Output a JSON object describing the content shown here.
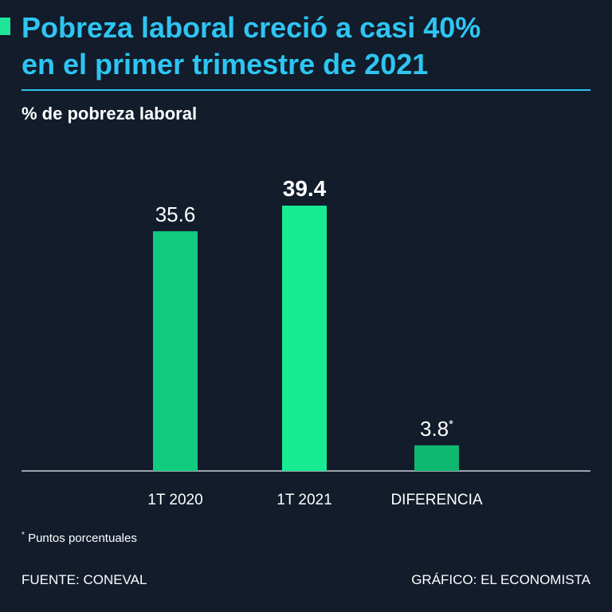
{
  "header": {
    "title_line1": "Pobreza laboral creció a casi 40%",
    "title_line2": "en el primer trimestre de 2021",
    "subtitle": "% de pobreza laboral"
  },
  "colors": {
    "background": "#121c2b",
    "title": "#2ec5f2",
    "accent": "#1fe59a",
    "bars": [
      "#11cc7e",
      "#17ec93",
      "#0fb870"
    ]
  },
  "chart_data": {
    "type": "bar",
    "categories": [
      "1T 2020",
      "1T 2021",
      "DIFERENCIA"
    ],
    "values": [
      35.6,
      39.4,
      3.8
    ],
    "value_labels": [
      "35.6",
      "39.4",
      "3.8*"
    ],
    "highlight_index": 1,
    "title": "",
    "xlabel": "",
    "ylabel": "% de pobreza laboral",
    "ylim": [
      0,
      40
    ],
    "grid": false
  },
  "footer": {
    "footnote_mark": "*",
    "footnote_text": "Puntos porcentuales",
    "source": "FUENTE: CONEVAL",
    "credit": "GRÁFICO: EL ECONOMISTA"
  }
}
